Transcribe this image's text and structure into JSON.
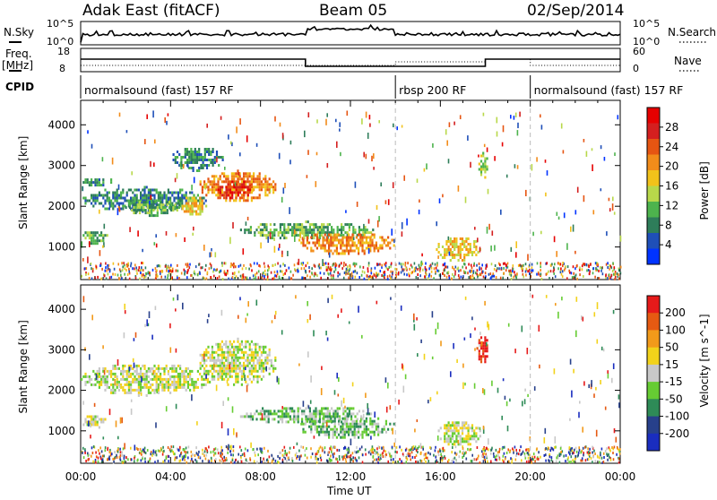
{
  "header": {
    "title": "Adak East (fitACF)",
    "beam": "Beam 05",
    "date": "02/Sep/2014"
  },
  "left_labels": {
    "nsky": "N.Sky",
    "freq": "Freq.",
    "freq_unit": "[MHz]",
    "cpid": "CPID"
  },
  "right_labels": {
    "nsearch": "N.Search",
    "nave": "Nave"
  },
  "noise_axis": {
    "top_left": "10^5",
    "bottom_left": "10^0",
    "top_right": "10^5",
    "bottom_right": "10^0"
  },
  "freq_axis": {
    "top": "18",
    "bottom": "8"
  },
  "nave_axis": {
    "top": "60",
    "bottom": "0"
  },
  "cpid_segments": [
    {
      "label": "normalsound (fast) 157 RF",
      "start": 0,
      "end": 14
    },
    {
      "label": "rbsp 200 RF",
      "start": 14,
      "end": 20
    },
    {
      "label": "normalsound (fast) 157 RF",
      "start": 20,
      "end": 24
    }
  ],
  "chart_data": [
    {
      "type": "heatmap",
      "name": "power-panel",
      "ylabel": "Slant Range [km]",
      "xlabel": "Time UT",
      "x_ticks": [
        "00:00",
        "04:00",
        "08:00",
        "12:00",
        "16:00",
        "20:00",
        "00:00"
      ],
      "y_ticks": [
        "1000",
        "2000",
        "3000",
        "4000"
      ],
      "ylim": [
        200,
        4600
      ],
      "xlim_hours": [
        0,
        24
      ],
      "colorbar": {
        "label": "Power [dB]",
        "ticks": [
          "4",
          "8",
          "12",
          "16",
          "20",
          "24",
          "28"
        ],
        "colors": [
          "#0033ff",
          "#1f4fb8",
          "#2e7d5a",
          "#4db34d",
          "#b8d84a",
          "#f2c21a",
          "#f28c1a",
          "#e65512",
          "#d41f1f",
          "#e60000"
        ]
      },
      "echo_regions": [
        {
          "t0": 0.0,
          "t1": 5.6,
          "r0": 1900,
          "r1": 2500,
          "level": 2
        },
        {
          "t0": 0.0,
          "t1": 1.4,
          "r0": 2500,
          "r1": 2750,
          "level": 2
        },
        {
          "t0": 1.8,
          "t1": 4.5,
          "r0": 1800,
          "r1": 2200,
          "level": 3
        },
        {
          "t0": 4.4,
          "t1": 5.6,
          "r0": 1800,
          "r1": 2300,
          "level": 5
        },
        {
          "t0": 5.2,
          "t1": 8.7,
          "r0": 2150,
          "r1": 2900,
          "level": 6
        },
        {
          "t0": 6.0,
          "t1": 7.6,
          "r0": 2200,
          "r1": 2700,
          "level": 8
        },
        {
          "t0": 4.0,
          "t1": 6.3,
          "r0": 2900,
          "r1": 3500,
          "level": 2
        },
        {
          "t0": 0.0,
          "t1": 1.2,
          "r0": 1100,
          "r1": 1450,
          "level": 3
        },
        {
          "t0": 7.0,
          "t1": 13.0,
          "r0": 1200,
          "r1": 1650,
          "level": 3
        },
        {
          "t0": 9.6,
          "t1": 14.0,
          "r0": 850,
          "r1": 1400,
          "level": 6
        },
        {
          "t0": 15.8,
          "t1": 17.8,
          "r0": 650,
          "r1": 1300,
          "level": 5
        },
        {
          "t0": 17.6,
          "t1": 18.1,
          "r0": 2700,
          "r1": 3400,
          "level": 4
        }
      ],
      "speckle_seed": 7
    },
    {
      "type": "heatmap",
      "name": "velocity-panel",
      "ylabel": "Slant Range [km]",
      "xlabel": "Time UT",
      "x_ticks": [
        "00:00",
        "04:00",
        "08:00",
        "12:00",
        "16:00",
        "20:00",
        "00:00"
      ],
      "y_ticks": [
        "1000",
        "2000",
        "3000",
        "4000"
      ],
      "ylim": [
        200,
        4600
      ],
      "xlim_hours": [
        0,
        24
      ],
      "colorbar": {
        "label": "Velocity [m s^-1]",
        "ticks": [
          "200",
          "100",
          "50",
          "15",
          "-15",
          "-50",
          "-100",
          "-200"
        ],
        "colors": [
          "#1a2dbf",
          "#27408b",
          "#2e8b57",
          "#66cc33",
          "#c8c8c8",
          "#f2d21a",
          "#f29a1a",
          "#e65a12",
          "#e61a1a"
        ]
      },
      "echo_regions": [
        {
          "t0": 0.0,
          "t1": 5.8,
          "r0": 1900,
          "r1": 2700,
          "level": 4
        },
        {
          "t0": 5.2,
          "t1": 8.7,
          "r0": 2150,
          "r1": 3300,
          "level": 4
        },
        {
          "t0": 0.0,
          "t1": 1.2,
          "r0": 1100,
          "r1": 1450,
          "level": 4
        },
        {
          "t0": 7.0,
          "t1": 13.0,
          "r0": 1200,
          "r1": 1650,
          "level": 3
        },
        {
          "t0": 9.6,
          "t1": 14.0,
          "r0": 850,
          "r1": 1400,
          "level": 3
        },
        {
          "t0": 15.8,
          "t1": 17.8,
          "r0": 650,
          "r1": 1300,
          "level": 4
        },
        {
          "t0": 17.6,
          "t1": 18.1,
          "r0": 2700,
          "r1": 3400,
          "level": 8
        }
      ],
      "speckle_seed": 11
    }
  ],
  "x_axis_title": "Time UT"
}
